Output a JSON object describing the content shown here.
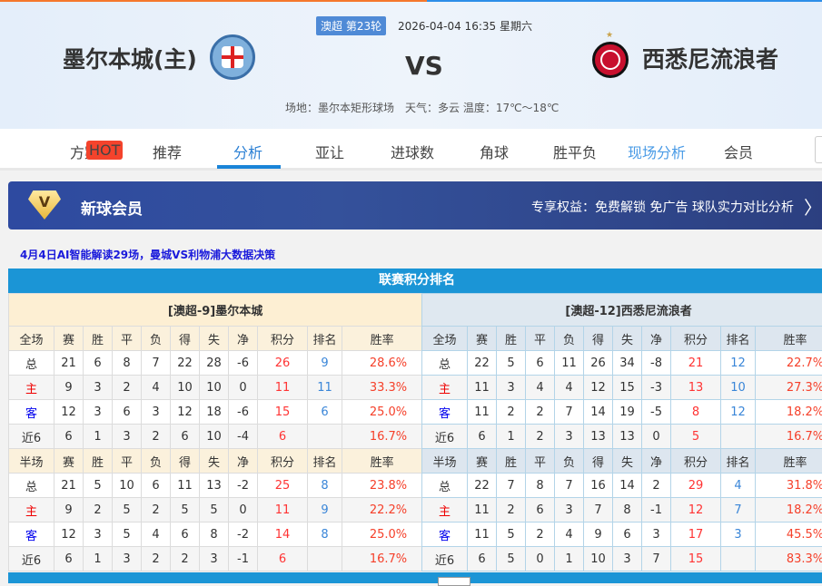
{
  "header": {
    "league": "澳超 第23轮",
    "datetime": "2026-04-04 16:35 星期六",
    "home_team": "墨尔本城(主)",
    "away_team": "西悉尼流浪者",
    "vs": "VS",
    "venue": "场地：墨尔本矩形球场　天气：多云 温度：17℃～18℃"
  },
  "nav": {
    "items": [
      "方案",
      "推荐",
      "分析",
      "亚让",
      "进球数",
      "角球",
      "胜平负",
      "现场分析",
      "会员"
    ],
    "hot_badge": "HOT",
    "active": "分析"
  },
  "member": {
    "title": "新球会员",
    "benefits": "专享权益：免费解锁 免广告 球队实力对比分析"
  },
  "ai_link": "4月4日AI智能解读29场，曼城VS利物浦大数据决策",
  "section_title": "联赛积分排名",
  "colors": {
    "accent": "#1b95d6",
    "points": "#ff3333",
    "rank": "#3a86d8"
  },
  "tables": [
    {
      "title": "[澳超-9]墨尔本城",
      "full_header": [
        "全场",
        "赛",
        "胜",
        "平",
        "负",
        "得",
        "失",
        "净",
        "积分",
        "排名",
        "胜率"
      ],
      "full_rows": [
        [
          "总",
          "21",
          "6",
          "8",
          "7",
          "22",
          "28",
          "-6",
          "26",
          "9",
          "28.6%"
        ],
        [
          "主",
          "9",
          "3",
          "2",
          "4",
          "10",
          "10",
          "0",
          "11",
          "11",
          "33.3%"
        ],
        [
          "客",
          "12",
          "3",
          "6",
          "3",
          "12",
          "18",
          "-6",
          "15",
          "6",
          "25.0%"
        ],
        [
          "近6",
          "6",
          "1",
          "3",
          "2",
          "6",
          "10",
          "-4",
          "6",
          "",
          "16.7%"
        ]
      ],
      "half_header": [
        "半场",
        "赛",
        "胜",
        "平",
        "负",
        "得",
        "失",
        "净",
        "积分",
        "排名",
        "胜率"
      ],
      "half_rows": [
        [
          "总",
          "21",
          "5",
          "10",
          "6",
          "11",
          "13",
          "-2",
          "25",
          "8",
          "23.8%"
        ],
        [
          "主",
          "9",
          "2",
          "5",
          "2",
          "5",
          "5",
          "0",
          "11",
          "9",
          "22.2%"
        ],
        [
          "客",
          "12",
          "3",
          "5",
          "4",
          "6",
          "8",
          "-2",
          "14",
          "8",
          "25.0%"
        ],
        [
          "近6",
          "6",
          "1",
          "3",
          "2",
          "2",
          "3",
          "-1",
          "6",
          "",
          "16.7%"
        ]
      ]
    },
    {
      "title": "[澳超-12]西悉尼流浪者",
      "full_header": [
        "全场",
        "赛",
        "胜",
        "平",
        "负",
        "得",
        "失",
        "净",
        "积分",
        "排名",
        "胜率"
      ],
      "full_rows": [
        [
          "总",
          "22",
          "5",
          "6",
          "11",
          "26",
          "34",
          "-8",
          "21",
          "12",
          "22.7%"
        ],
        [
          "主",
          "11",
          "3",
          "4",
          "4",
          "12",
          "15",
          "-3",
          "13",
          "10",
          "27.3%"
        ],
        [
          "客",
          "11",
          "2",
          "2",
          "7",
          "14",
          "19",
          "-5",
          "8",
          "12",
          "18.2%"
        ],
        [
          "近6",
          "6",
          "1",
          "2",
          "3",
          "13",
          "13",
          "0",
          "5",
          "",
          "16.7%"
        ]
      ],
      "half_header": [
        "半场",
        "赛",
        "胜",
        "平",
        "负",
        "得",
        "失",
        "净",
        "积分",
        "排名",
        "胜率"
      ],
      "half_rows": [
        [
          "总",
          "22",
          "7",
          "8",
          "7",
          "16",
          "14",
          "2",
          "29",
          "4",
          "31.8%"
        ],
        [
          "主",
          "11",
          "2",
          "6",
          "3",
          "7",
          "8",
          "-1",
          "12",
          "7",
          "18.2%"
        ],
        [
          "客",
          "11",
          "5",
          "2",
          "4",
          "9",
          "6",
          "3",
          "17",
          "3",
          "45.5%"
        ],
        [
          "近6",
          "6",
          "5",
          "0",
          "1",
          "10",
          "3",
          "7",
          "15",
          "",
          "83.3%"
        ]
      ]
    }
  ]
}
